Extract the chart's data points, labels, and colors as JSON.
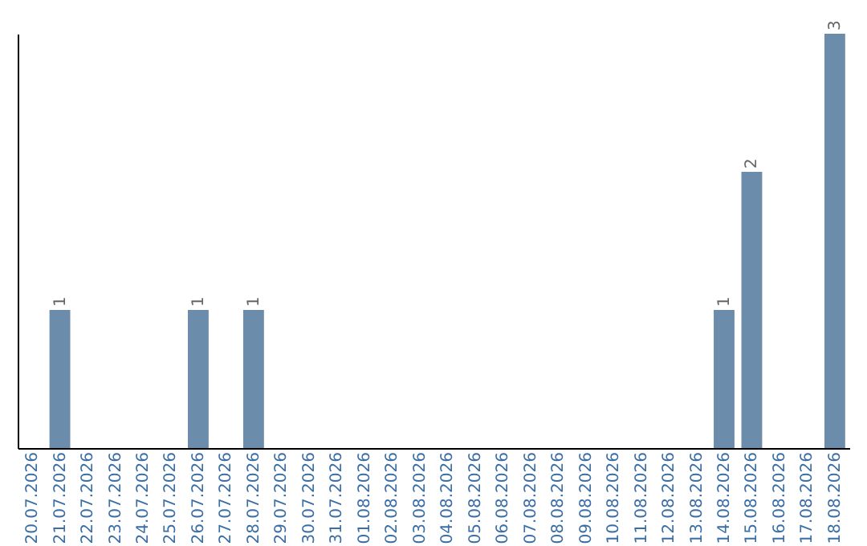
{
  "chart_data": {
    "type": "bar",
    "categories": [
      "20.07.2026",
      "21.07.2026",
      "22.07.2026",
      "23.07.2026",
      "24.07.2026",
      "25.07.2026",
      "26.07.2026",
      "27.07.2026",
      "28.07.2026",
      "29.07.2026",
      "30.07.2026",
      "31.07.2026",
      "01.08.2026",
      "02.08.2026",
      "03.08.2026",
      "04.08.2026",
      "05.08.2026",
      "06.08.2026",
      "07.08.2026",
      "08.08.2026",
      "09.08.2026",
      "10.08.2026",
      "11.08.2026",
      "12.08.2026",
      "13.08.2026",
      "14.08.2026",
      "15.08.2026",
      "16.08.2026",
      "17.08.2026",
      "18.08.2026"
    ],
    "values": [
      0,
      1,
      0,
      0,
      0,
      0,
      1,
      0,
      1,
      0,
      0,
      0,
      0,
      0,
      0,
      0,
      0,
      0,
      0,
      0,
      0,
      0,
      0,
      0,
      0,
      1,
      2,
      0,
      0,
      3
    ],
    "value_labels": [
      null,
      "1",
      null,
      null,
      null,
      null,
      "1",
      null,
      "1",
      null,
      null,
      null,
      null,
      null,
      null,
      null,
      null,
      null,
      null,
      null,
      null,
      null,
      null,
      null,
      null,
      "1",
      "2",
      null,
      null,
      "3"
    ],
    "color": "#6b8caa",
    "tick_labels": "x"
  }
}
